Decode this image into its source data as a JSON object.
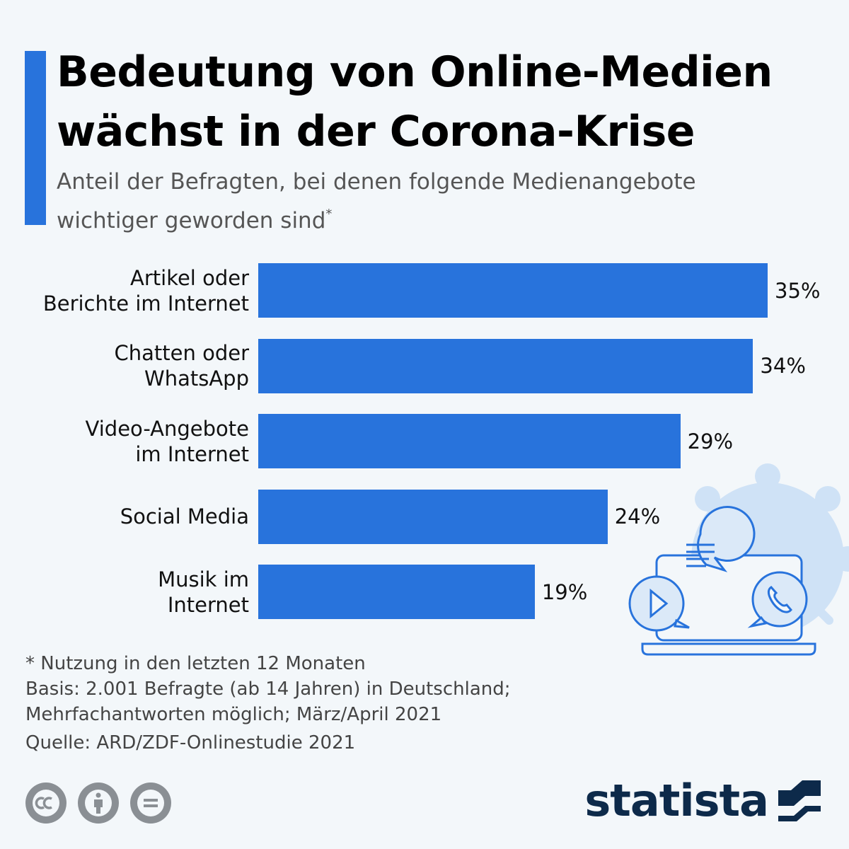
{
  "title_line1": "Bedeutung von Online-Medien",
  "title_line2": "wächst in der Corona-Krise",
  "subtitle_line1": "Anteil der Befragten, bei denen folgende Medienangebote",
  "subtitle_line2": "wichtiger geworden sind",
  "subtitle_mark": "*",
  "chart_data": {
    "type": "bar",
    "orientation": "horizontal",
    "categories": [
      [
        "Artikel oder",
        "Berichte im Internet"
      ],
      [
        "Chatten oder",
        "WhatsApp"
      ],
      [
        "Video-Angebote",
        "im Internet"
      ],
      [
        "Social Media"
      ],
      [
        "Musik im",
        "Internet"
      ]
    ],
    "values": [
      35,
      34,
      29,
      24,
      19
    ],
    "value_labels": [
      "35%",
      "34%",
      "29%",
      "24%",
      "19%"
    ],
    "unit": "%",
    "xlim": [
      0,
      35
    ],
    "bar_color": "#2873dc",
    "grid": false
  },
  "notes": {
    "footnote": "* Nutzung in den letzten 12 Monaten",
    "basis_line1": "Basis: 2.001 Befragte (ab 14 Jahren) in Deutschland;",
    "basis_line2": "Mehrfachantworten möglich; März/April 2021",
    "source": "Quelle: ARD/ZDF-Onlinestudie 2021"
  },
  "brand": {
    "name": "statista",
    "color": "#0d2a4a"
  },
  "license_icons": [
    "cc-icon",
    "attribution-icon",
    "no-derivatives-icon"
  ],
  "colors": {
    "accent": "#2873dc",
    "background": "#f3f7fa",
    "illustration": "#2873dc",
    "virus": "#cfe2f6"
  }
}
